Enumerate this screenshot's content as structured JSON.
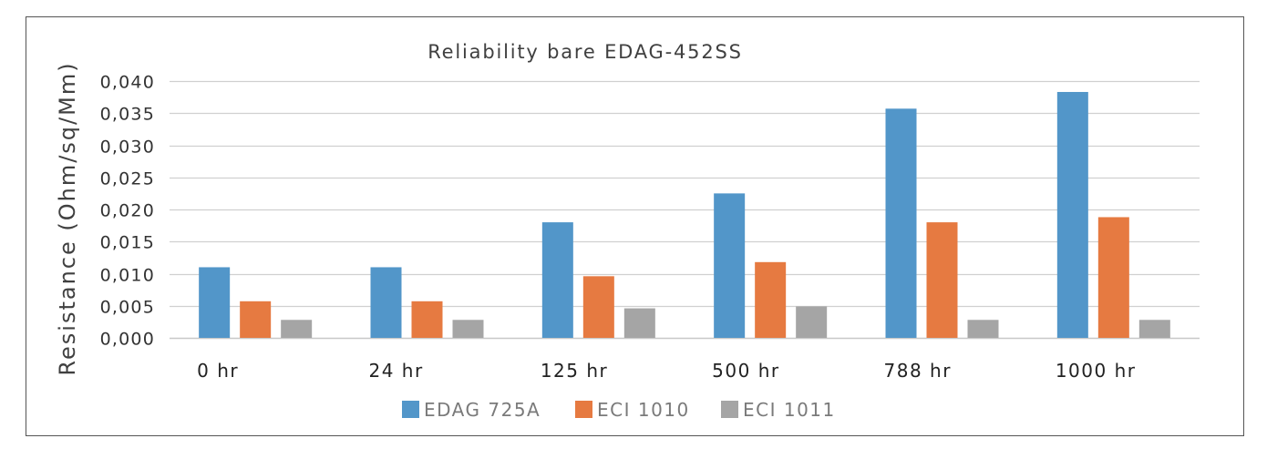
{
  "chart_data": {
    "type": "bar",
    "title": "Reliability bare EDAG-452SS",
    "xlabel": "",
    "ylabel": "Resistance (Ohm/sq/Mm)",
    "ylim": [
      0,
      0.04
    ],
    "ytick_values": [
      0,
      0.005,
      0.01,
      0.015,
      0.02,
      0.025,
      0.03,
      0.035,
      0.04
    ],
    "ytick_labels": [
      "0,000",
      "0,005",
      "0,010",
      "0,015",
      "0,020",
      "0,025",
      "0,030",
      "0,035",
      "0,040"
    ],
    "grid": true,
    "legend_position": "bottom",
    "categories": [
      "0  hr",
      "24 hr",
      "125 hr",
      "500 hr",
      "788 hr",
      "1000 hr"
    ],
    "series": [
      {
        "name": "EDAG 725A",
        "color": "#5296C9",
        "values": [
          0.011,
          0.011,
          0.018,
          0.0225,
          0.0357,
          0.0383
        ]
      },
      {
        "name": "ECI 1010",
        "color": "#E67A41",
        "values": [
          0.0057,
          0.0057,
          0.0096,
          0.0118,
          0.018,
          0.0188
        ]
      },
      {
        "name": "ECI 1011",
        "color": "#A5A5A5",
        "values": [
          0.0028,
          0.0028,
          0.0046,
          0.0049,
          0.0028,
          0.0028
        ]
      }
    ]
  }
}
